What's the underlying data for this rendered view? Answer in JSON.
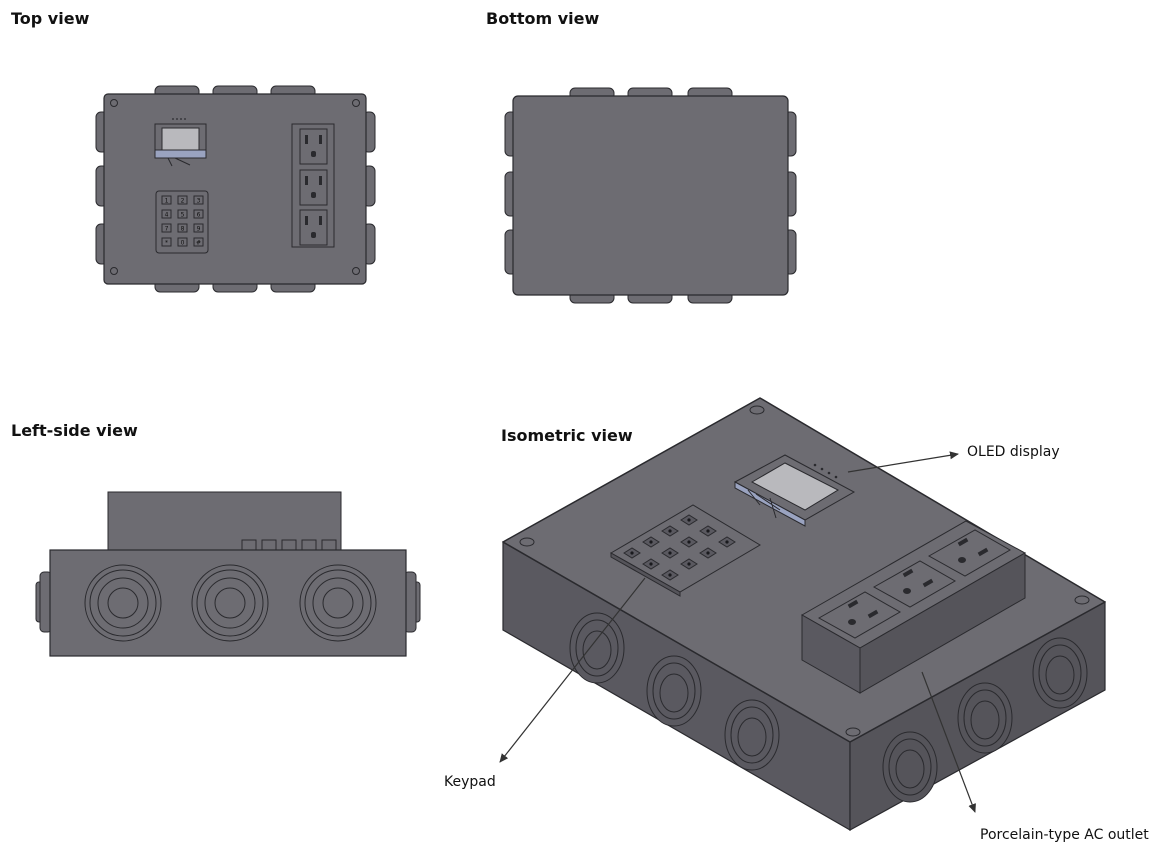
{
  "views": {
    "top": "Top view",
    "bottom": "Bottom view",
    "left_side": "Left-side view",
    "isometric": "Isometric view"
  },
  "callouts": {
    "oled": "OLED display",
    "keypad": "Keypad",
    "outlet": "Porcelain-type AC outlet"
  },
  "keypad_keys": [
    "1",
    "2",
    "3",
    "4",
    "5",
    "6",
    "7",
    "8",
    "9",
    "*",
    "0",
    "#"
  ],
  "colors": {
    "enclosure": "#6d6c72",
    "enclosure_dark": "#5a5960",
    "enclosure_side": "#55545a",
    "outline": "#2a2a2e",
    "display_frame": "#9aa3c0",
    "display_screen": "#b9b9bd"
  }
}
